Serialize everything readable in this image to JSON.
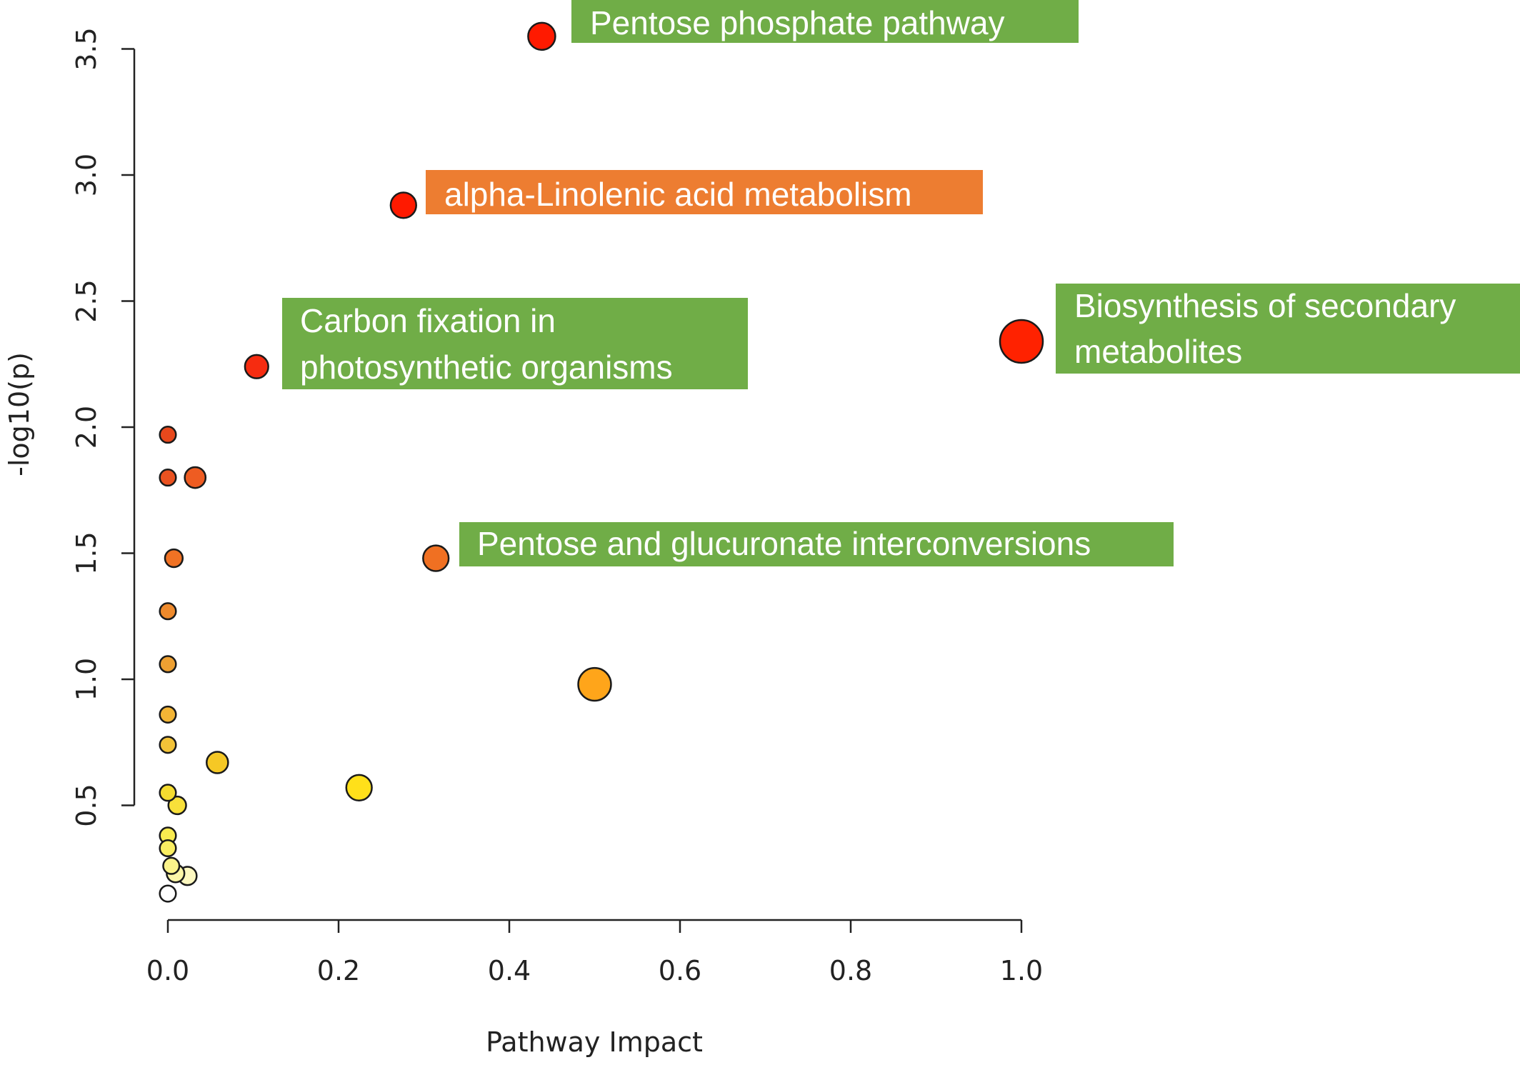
{
  "chart_data": {
    "type": "scatter",
    "title": "",
    "xlabel": "Pathway Impact",
    "ylabel": "-log10(p)",
    "xlim": [
      0.0,
      1.0
    ],
    "ylim": [
      0.0,
      3.5
    ],
    "x_ticks": [
      "0.0",
      "0.2",
      "0.4",
      "0.6",
      "0.8",
      "1.0"
    ],
    "y_ticks": [
      "0.5",
      "1.0",
      "1.5",
      "2.0",
      "2.5",
      "3.0",
      "3.5"
    ],
    "grid": false,
    "legend": "none",
    "colors": {
      "low": "#ffffe0",
      "mid": "#ffd700",
      "high": "#ff1500",
      "green_label": "#70ad47",
      "orange_label": "#ed7d31"
    },
    "points": [
      {
        "x": 0.438,
        "y": 3.55,
        "size": 0.5,
        "color": "#ff1a00"
      },
      {
        "x": 0.276,
        "y": 2.88,
        "size": 0.45,
        "color": "#ff1a00"
      },
      {
        "x": 1.0,
        "y": 2.34,
        "size": 1.0,
        "color": "#ff2200"
      },
      {
        "x": 0.104,
        "y": 2.24,
        "size": 0.38,
        "color": "#f62c10"
      },
      {
        "x": 0.0,
        "y": 1.97,
        "size": 0.15,
        "color": "#e8481c"
      },
      {
        "x": 0.0,
        "y": 1.8,
        "size": 0.15,
        "color": "#ea5220"
      },
      {
        "x": 0.032,
        "y": 1.8,
        "size": 0.3,
        "color": "#ee5c22"
      },
      {
        "x": 0.314,
        "y": 1.48,
        "size": 0.45,
        "color": "#f07022"
      },
      {
        "x": 0.007,
        "y": 1.48,
        "size": 0.2,
        "color": "#f07224"
      },
      {
        "x": 0.0,
        "y": 1.27,
        "size": 0.15,
        "color": "#ee8a2c"
      },
      {
        "x": 0.0,
        "y": 1.06,
        "size": 0.15,
        "color": "#eea032"
      },
      {
        "x": 0.5,
        "y": 0.98,
        "size": 0.68,
        "color": "#ffa51a"
      },
      {
        "x": 0.0,
        "y": 0.86,
        "size": 0.15,
        "color": "#f3b535"
      },
      {
        "x": 0.0,
        "y": 0.74,
        "size": 0.15,
        "color": "#f3c338"
      },
      {
        "x": 0.058,
        "y": 0.67,
        "size": 0.32,
        "color": "#f5c825"
      },
      {
        "x": 0.224,
        "y": 0.57,
        "size": 0.45,
        "color": "#ffe01a"
      },
      {
        "x": 0.0,
        "y": 0.55,
        "size": 0.15,
        "color": "#f5dc30"
      },
      {
        "x": 0.011,
        "y": 0.5,
        "size": 0.2,
        "color": "#f8e03a"
      },
      {
        "x": 0.0,
        "y": 0.38,
        "size": 0.15,
        "color": "#f9eb50"
      },
      {
        "x": 0.0,
        "y": 0.33,
        "size": 0.15,
        "color": "#faee62"
      },
      {
        "x": 0.004,
        "y": 0.26,
        "size": 0.15,
        "color": "#fbf38a"
      },
      {
        "x": 0.009,
        "y": 0.23,
        "size": 0.2,
        "color": "#fcf6a8"
      },
      {
        "x": 0.023,
        "y": 0.22,
        "size": 0.22,
        "color": "#fdf8c0"
      },
      {
        "x": 0.0,
        "y": 0.15,
        "size": 0.15,
        "color": "#ffffff"
      }
    ],
    "annotations": [
      {
        "lines": [
          "Pentose phosphate pathway"
        ],
        "color": "#70ad47"
      },
      {
        "lines": [
          "alpha-Linolenic acid metabolism"
        ],
        "color": "#ed7d31"
      },
      {
        "lines": [
          "Carbon fixation in",
          "photosynthetic organisms"
        ],
        "color": "#70ad47"
      },
      {
        "lines": [
          "Biosynthesis of secondary",
          "metabolites"
        ],
        "color": "#70ad47"
      },
      {
        "lines": [
          "Pentose and glucuronate interconversions"
        ],
        "color": "#70ad47"
      }
    ]
  }
}
